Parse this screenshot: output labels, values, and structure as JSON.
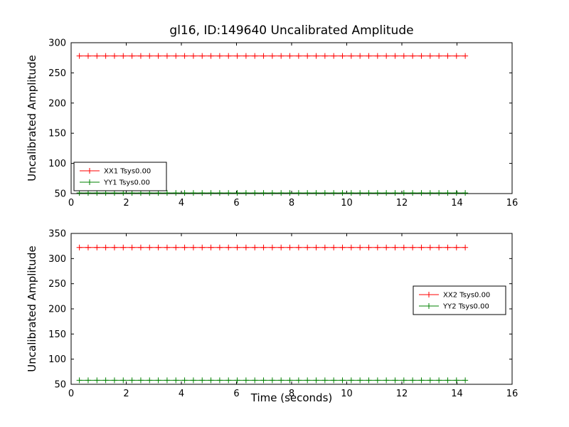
{
  "chart_data": [
    {
      "type": "line",
      "title": "gl16, ID:149640 Uncalibrated Amplitude",
      "xlabel": "",
      "ylabel": "Uncalibrated Amplitude",
      "xlim": [
        0,
        16
      ],
      "ylim": [
        50,
        300
      ],
      "xticks": [
        0,
        2,
        4,
        6,
        8,
        10,
        12,
        14,
        16
      ],
      "yticks": [
        50,
        100,
        150,
        200,
        250,
        300
      ],
      "grid": false,
      "legend": "lower-left",
      "series": [
        {
          "name": "XX1 Tsys0.00",
          "color": "#ff0000",
          "marker": "+",
          "x_start": 0.3,
          "x_end": 14.3,
          "points": 45,
          "y": 278
        },
        {
          "name": "YY1 Tsys0.00",
          "color": "#008000",
          "marker": "+",
          "x_start": 0.3,
          "x_end": 14.3,
          "points": 45,
          "y": 51
        }
      ]
    },
    {
      "type": "line",
      "title": "",
      "xlabel": "Time (seconds)",
      "ylabel": "Uncalibrated Amplitude",
      "xlim": [
        0,
        16
      ],
      "ylim": [
        50,
        350
      ],
      "xticks": [
        0,
        2,
        4,
        6,
        8,
        10,
        12,
        14,
        16
      ],
      "yticks": [
        50,
        100,
        150,
        200,
        250,
        300,
        350
      ],
      "grid": false,
      "legend": "center-right",
      "series": [
        {
          "name": "XX2 Tsys0.00",
          "color": "#ff0000",
          "marker": "+",
          "x_start": 0.3,
          "x_end": 14.3,
          "points": 45,
          "y": 322
        },
        {
          "name": "YY2 Tsys0.00",
          "color": "#008000",
          "marker": "+",
          "x_start": 0.3,
          "x_end": 14.3,
          "points": 45,
          "y": 58
        }
      ]
    }
  ],
  "colors": {
    "axes": "#000000",
    "background": "#ffffff",
    "series_red": "#ff0000",
    "series_green": "#008000"
  }
}
